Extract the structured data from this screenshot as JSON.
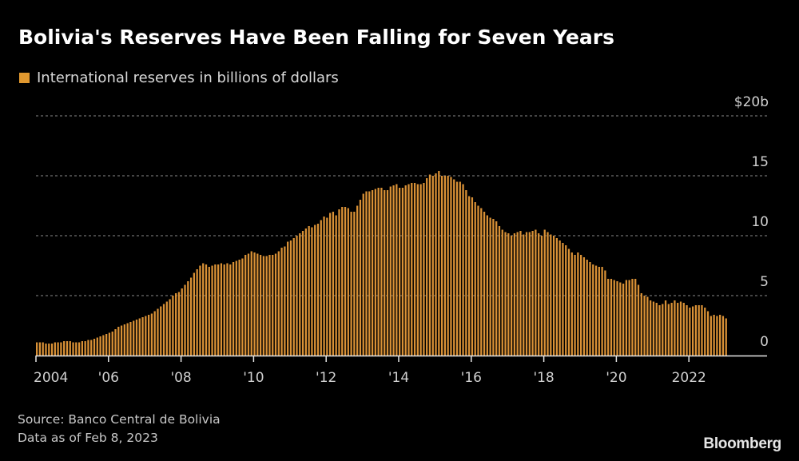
{
  "title": "Bolivia's Reserves Have Been Falling for Seven Years",
  "legend": {
    "label": "International reserves in billions of dollars",
    "color": "#e0982f"
  },
  "source": "Source: Banco Central de Bolivia",
  "data_as_of": "Data as of Feb 8, 2023",
  "logo": "Bloomberg",
  "colors": {
    "background": "#000000",
    "bar": "#d99136",
    "grid": "#8a8a8a",
    "axis": "#e6e6e6"
  },
  "chart_data": {
    "type": "bar",
    "title": "Bolivia's Reserves Have Been Falling for Seven Years",
    "series": [
      {
        "name": "International reserves in billions of dollars"
      }
    ],
    "frequency": "monthly",
    "start": "2004-01",
    "end": "2023-01",
    "ylim": [
      0,
      20
    ],
    "yticks": [
      0,
      5,
      10,
      15,
      20
    ],
    "ytick_labels": [
      "0",
      "5",
      "10",
      "15",
      "$20b"
    ],
    "xlim": [
      2004,
      2023.3
    ],
    "xticks": [
      2004,
      2006,
      2008,
      2010,
      2012,
      2014,
      2016,
      2018,
      2020,
      2022
    ],
    "xtick_labels": [
      "2004",
      "'06",
      "'08",
      "'10",
      "'12",
      "'14",
      "'16",
      "'18",
      "'20",
      "2022"
    ],
    "grid": true,
    "y_axis_side": "right",
    "values": [
      1.1,
      1.1,
      1.1,
      1.0,
      1.0,
      1.0,
      1.1,
      1.1,
      1.1,
      1.2,
      1.2,
      1.2,
      1.1,
      1.1,
      1.1,
      1.2,
      1.2,
      1.3,
      1.3,
      1.4,
      1.5,
      1.6,
      1.7,
      1.8,
      1.9,
      2.0,
      2.2,
      2.4,
      2.5,
      2.6,
      2.7,
      2.8,
      2.9,
      3.0,
      3.1,
      3.2,
      3.3,
      3.4,
      3.5,
      3.7,
      3.9,
      4.1,
      4.3,
      4.5,
      4.7,
      5.0,
      5.2,
      5.3,
      5.6,
      5.9,
      6.2,
      6.5,
      6.9,
      7.2,
      7.5,
      7.7,
      7.6,
      7.4,
      7.5,
      7.6,
      7.6,
      7.7,
      7.6,
      7.7,
      7.6,
      7.8,
      7.9,
      8.0,
      8.1,
      8.4,
      8.5,
      8.7,
      8.6,
      8.5,
      8.4,
      8.3,
      8.3,
      8.4,
      8.4,
      8.5,
      8.7,
      9.0,
      9.1,
      9.5,
      9.6,
      9.8,
      10.0,
      10.2,
      10.4,
      10.6,
      10.8,
      10.7,
      10.9,
      11.0,
      11.3,
      11.6,
      11.5,
      11.9,
      12.0,
      11.7,
      12.2,
      12.4,
      12.4,
      12.3,
      12.0,
      12.0,
      12.5,
      13.0,
      13.5,
      13.7,
      13.7,
      13.8,
      13.9,
      14.0,
      14.0,
      13.8,
      13.8,
      14.1,
      14.2,
      14.3,
      14.0,
      14.0,
      14.2,
      14.3,
      14.4,
      14.4,
      14.3,
      14.3,
      14.4,
      14.8,
      15.1,
      15.0,
      15.2,
      15.4,
      15.0,
      15.0,
      15.0,
      14.9,
      14.7,
      14.5,
      14.5,
      14.3,
      13.8,
      13.3,
      13.2,
      12.8,
      12.5,
      12.3,
      12.0,
      11.7,
      11.5,
      11.4,
      11.2,
      10.8,
      10.5,
      10.3,
      10.2,
      10.0,
      10.2,
      10.3,
      10.4,
      10.1,
      10.3,
      10.3,
      10.4,
      10.5,
      10.2,
      10.0,
      10.5,
      10.3,
      10.1,
      10.0,
      9.8,
      9.6,
      9.4,
      9.2,
      8.9,
      8.6,
      8.4,
      8.6,
      8.4,
      8.2,
      8.0,
      7.8,
      7.6,
      7.5,
      7.4,
      7.4,
      7.1,
      6.4,
      6.4,
      6.3,
      6.2,
      6.1,
      6.0,
      6.3,
      6.3,
      6.4,
      6.4,
      5.9,
      5.2,
      5.0,
      4.9,
      4.6,
      4.5,
      4.4,
      4.2,
      4.3,
      4.6,
      4.3,
      4.4,
      4.6,
      4.4,
      4.5,
      4.4,
      4.2,
      4.0,
      4.1,
      4.2,
      4.2,
      4.2,
      4.0,
      3.7,
      3.3,
      3.4,
      3.3,
      3.4,
      3.3,
      3.1
    ]
  }
}
